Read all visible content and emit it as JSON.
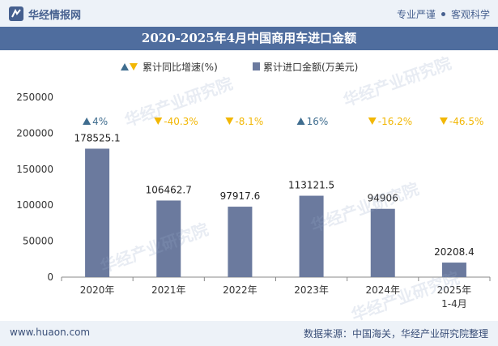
{
  "header": {
    "logo_text": "华经情报网",
    "tagline_left": "专业严谨",
    "tagline_right": "客观科学"
  },
  "title": "2020-2025年4月中国商用车进口金额",
  "legend": {
    "growth_label": "累计同比增速(%)",
    "amount_label": "累计进口金额(万美元)"
  },
  "colors": {
    "bar": "#6b7a9e",
    "up": "#3f6d8f",
    "down": "#f2b705",
    "title_bg": "#4f6d9e"
  },
  "chart_data": {
    "type": "bar",
    "title": "2020-2025年4月中国商用车进口金额",
    "categories": [
      "2020年",
      "2021年",
      "2022年",
      "2023年",
      "2024年",
      "2025年 1-4月"
    ],
    "category_lines": [
      [
        "2020年"
      ],
      [
        "2021年"
      ],
      [
        "2022年"
      ],
      [
        "2023年"
      ],
      [
        "2024年"
      ],
      [
        "2025年",
        "1-4月"
      ]
    ],
    "series": [
      {
        "name": "累计进口金额(万美元)",
        "values": [
          178525.1,
          106462.7,
          97917.6,
          113121.5,
          94906,
          20208.4
        ]
      }
    ],
    "value_labels": [
      "178525.1",
      "106462.7",
      "97917.6",
      "113121.5",
      "94906",
      "20208.4"
    ],
    "growth": {
      "name": "累计同比增速(%)",
      "values": [
        4,
        -40.3,
        -8.1,
        16,
        -16.2,
        -46.5
      ],
      "labels": [
        "4%",
        "-40.3%",
        "-8.1%",
        "16%",
        "-16.2%",
        "-46.5%"
      ]
    },
    "ylim": [
      0,
      250000
    ],
    "yticks": [
      0,
      50000,
      100000,
      150000,
      200000,
      250000
    ],
    "ytick_labels": [
      "0",
      "50000",
      "100000",
      "150000",
      "200000",
      "250000"
    ]
  },
  "watermark": "华经产业研究院",
  "footer": {
    "website": "www.huaon.com",
    "source": "数据来源：中国海关，华经产业研究院整理"
  }
}
